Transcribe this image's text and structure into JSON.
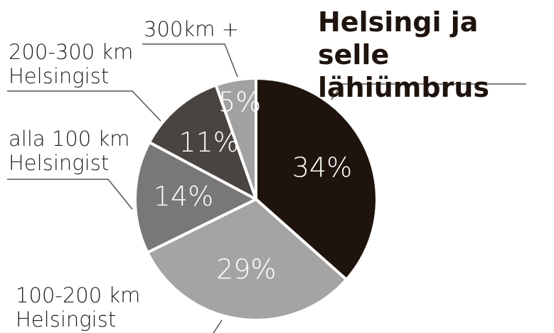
{
  "chart_data": {
    "type": "pie",
    "categories": [
      "Helsingi ja\nselle lähiümbrus",
      "100-200 km\nHelsingist",
      "alla 100 km\nHelsingist",
      "200-300 km\nHelsingist",
      "300km +"
    ],
    "values": [
      34,
      29,
      14,
      11,
      5
    ],
    "value_labels": [
      "34%",
      "29%",
      "14%",
      "11%",
      "5%"
    ],
    "colors": [
      "#1e140d",
      "#a5a4a3",
      "#7a7876",
      "#4a4441",
      "#a3a1a0"
    ]
  }
}
